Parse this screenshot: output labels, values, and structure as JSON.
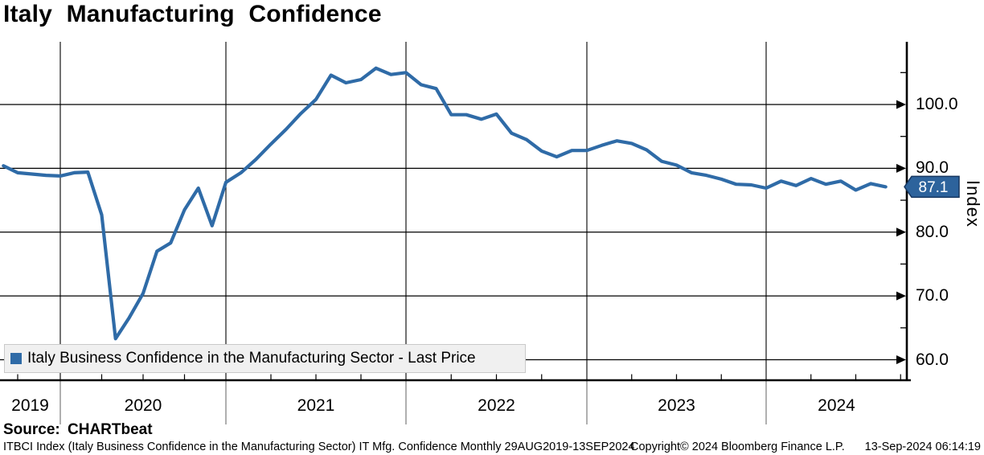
{
  "title": "Italy Manufacturing Confidence",
  "legend": {
    "swatch_color": "#2f6ba7",
    "label": "Italy Business Confidence in the Manufacturing Sector - Last Price"
  },
  "y_axis": {
    "title": "Index",
    "ticks": [
      {
        "label": "100.0",
        "value": 100
      },
      {
        "label": "90.0",
        "value": 90
      },
      {
        "label": "80.0",
        "value": 80
      },
      {
        "label": "70.0",
        "value": 70
      },
      {
        "label": "60.0",
        "value": 60
      }
    ],
    "minor_tick_values": [
      105,
      95,
      85,
      75,
      65
    ],
    "last_price_badge": {
      "value": "87.1",
      "bg_color": "#2d639c",
      "border_color": "#16365f",
      "text_color": "#ffffff"
    }
  },
  "x_axis": {
    "year_labels": [
      "2019",
      "2020",
      "2021",
      "2022",
      "2023",
      "2024"
    ]
  },
  "source_label": "Source: CHARTbeat",
  "footer": {
    "description": "ITBCI Index (Italy Business Confidence in the Manufacturing Sector) IT Mfg. Confidence  Monthly 29AUG2019-13SEP2024",
    "copyright": "Copyright© 2024 Bloomberg Finance L.P.",
    "timestamp": "13-Sep-2024 06:14:19"
  },
  "chart_data": {
    "type": "line",
    "title": "Italy Manufacturing Confidence",
    "ylabel": "Index",
    "ylim": [
      56.5,
      109.5
    ],
    "x_range": [
      "29AUG2019",
      "13SEP2024"
    ],
    "frequency": "Monthly",
    "grid": true,
    "legend_position": "bottom-left",
    "line_color": "#2f6ba7",
    "x": [
      "2019-08",
      "2019-09",
      "2019-10",
      "2019-11",
      "2019-12",
      "2020-01",
      "2020-02",
      "2020-03",
      "2020-04",
      "2020-05",
      "2020-06",
      "2020-07",
      "2020-08",
      "2020-09",
      "2020-10",
      "2020-11",
      "2020-12",
      "2021-01",
      "2021-02",
      "2021-03",
      "2021-04",
      "2021-05",
      "2021-06",
      "2021-07",
      "2021-08",
      "2021-09",
      "2021-10",
      "2021-11",
      "2021-12",
      "2022-01",
      "2022-02",
      "2022-03",
      "2022-04",
      "2022-05",
      "2022-06",
      "2022-07",
      "2022-08",
      "2022-09",
      "2022-10",
      "2022-11",
      "2022-12",
      "2023-01",
      "2023-02",
      "2023-03",
      "2023-04",
      "2023-05",
      "2023-06",
      "2023-07",
      "2023-08",
      "2023-09",
      "2023-10",
      "2023-11",
      "2023-12",
      "2024-01",
      "2024-02",
      "2024-03",
      "2024-04",
      "2024-05",
      "2024-06",
      "2024-07",
      "2024-08"
    ],
    "series": [
      {
        "name": "Italy Business Confidence in the Manufacturing Sector - Last Price",
        "last_value": 87.1,
        "values": [
          90.4,
          89.3,
          89.1,
          88.9,
          88.8,
          89.3,
          89.4,
          82.7,
          63.3,
          66.6,
          70.4,
          77.0,
          78.3,
          83.5,
          86.9,
          81.0,
          87.8,
          89.3,
          91.4,
          93.8,
          96.1,
          98.6,
          100.8,
          104.6,
          103.4,
          103.9,
          105.7,
          104.7,
          105.0,
          103.1,
          102.5,
          98.4,
          98.4,
          97.7,
          98.5,
          95.5,
          94.5,
          92.7,
          91.8,
          92.8,
          92.8,
          93.6,
          94.3,
          93.9,
          92.9,
          91.1,
          90.5,
          89.3,
          88.9,
          88.3,
          87.5,
          87.4,
          86.9,
          88.0,
          87.3,
          88.4,
          87.5,
          88.0,
          86.6,
          87.6,
          87.1
        ]
      }
    ]
  }
}
